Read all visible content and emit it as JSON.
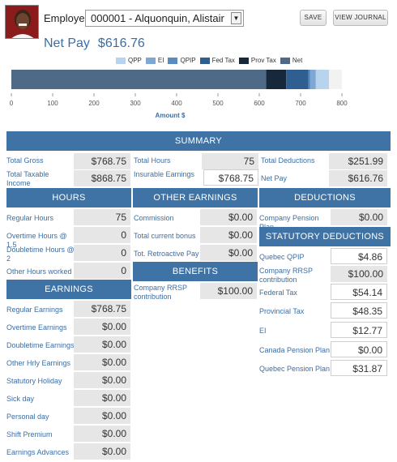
{
  "header": {
    "employee_label": "Employee:",
    "employee_value": "000001 - Alquonquin, Alistair",
    "save_label": "SAVE",
    "view_journal_label": "VIEW JOURNAL"
  },
  "netpay": {
    "label": "Net Pay",
    "amount": "$616.76"
  },
  "chart_data": {
    "type": "bar",
    "orientation": "horizontal",
    "stacked": true,
    "xlabel": "Amount $",
    "xlim": [
      0,
      800
    ],
    "xticks": [
      "0",
      "100",
      "200",
      "300",
      "400",
      "500",
      "600",
      "700",
      "800"
    ],
    "series": [
      {
        "name": "Net",
        "value": 616.76,
        "color": "#4e6a86"
      },
      {
        "name": "Prov Tax",
        "value": 48.35,
        "color": "#17283a"
      },
      {
        "name": "Fed Tax",
        "value": 54.14,
        "color": "#2f5f91"
      },
      {
        "name": "QPIP",
        "value": 4.86,
        "color": "#5a8cc0"
      },
      {
        "name": "EI",
        "value": 12.77,
        "color": "#7ea8d3"
      },
      {
        "name": "QPP",
        "value": 31.87,
        "color": "#b7d3ee"
      }
    ],
    "legend": [
      "QPP",
      "EI",
      "QPIP",
      "Fed Tax",
      "Prov Tax",
      "Net"
    ],
    "legend_position": "top-right"
  },
  "summary": {
    "title": "SUMMARY",
    "total_gross_label": "Total Gross",
    "total_gross": "$768.75",
    "total_taxable_label": "Total Taxable Income",
    "total_taxable": "$868.75",
    "total_hours_label": "Total Hours",
    "total_hours": "75",
    "insurable_label": "Insurable Earnings",
    "insurable": "$768.75",
    "total_deductions_label": "Total Deductions",
    "total_deductions": "$251.99",
    "net_pay_label": "Net Pay",
    "net_pay": "$616.76"
  },
  "hours": {
    "title": "HOURS",
    "items": [
      {
        "label": "Regular Hours",
        "value": "75"
      },
      {
        "label": "Overtime Hours @ 1.5",
        "value": "0"
      },
      {
        "label": "Doubletime Hours @ 2",
        "value": "0"
      },
      {
        "label": "Other Hours worked",
        "value": "0"
      }
    ]
  },
  "other_earnings": {
    "title": "OTHER EARNINGS",
    "items": [
      {
        "label": "Commission",
        "value": "$0.00"
      },
      {
        "label": "Total current bonus",
        "value": "$0.00"
      },
      {
        "label": "Tot. Retroactive Pay",
        "value": "$0.00"
      }
    ]
  },
  "benefits": {
    "title": "BENEFITS",
    "items": [
      {
        "label": "Company RRSP contribution",
        "value": "$100.00"
      }
    ]
  },
  "deductions": {
    "title": "DEDUCTIONS",
    "items": [
      {
        "label": "Company Pension Plan",
        "value": "$0.00"
      }
    ]
  },
  "statutory": {
    "title": "STATUTORY DEDUCTIONS",
    "items": [
      {
        "label": "Quebec QPIP",
        "value": "$4.86"
      },
      {
        "label": "Company RRSP contribution",
        "value": "$100.00"
      },
      {
        "label": "Federal Tax",
        "value": "$54.14"
      },
      {
        "label": "Provincial Tax",
        "value": "$48.35"
      },
      {
        "label": "EI",
        "value": "$12.77"
      },
      {
        "label": "Canada Pension Plan",
        "value": "$0.00"
      },
      {
        "label": "Quebec Pension Plan",
        "value": "$31.87"
      }
    ]
  },
  "earnings": {
    "title": "EARNINGS",
    "items": [
      {
        "label": "Regular Earnings",
        "value": "$768.75"
      },
      {
        "label": "Overtime Earnings",
        "value": "$0.00"
      },
      {
        "label": "Doubletime Earnings",
        "value": "$0.00"
      },
      {
        "label": "Other Hrly Earnings",
        "value": "$0.00"
      },
      {
        "label": "Statutory Holiday",
        "value": "$0.00"
      },
      {
        "label": "Sick day",
        "value": "$0.00"
      },
      {
        "label": "Personal day",
        "value": "$0.00"
      },
      {
        "label": "Shift Premium",
        "value": "$0.00"
      },
      {
        "label": "Earnings Advances",
        "value": "$0.00"
      }
    ]
  }
}
